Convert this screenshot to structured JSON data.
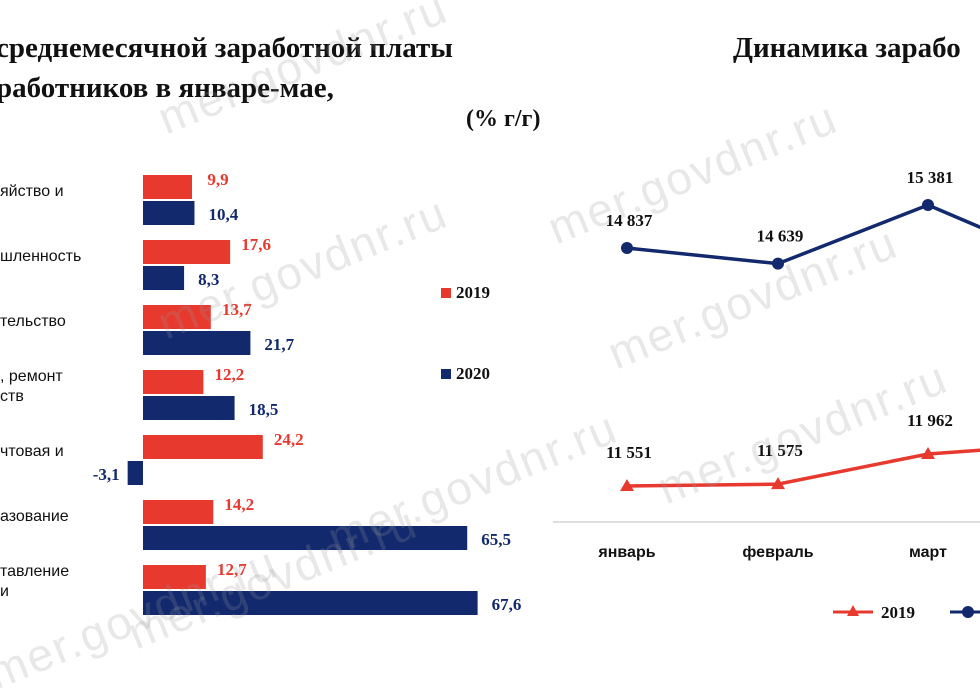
{
  "left_title": "среднемесячной заработной платы\nработников в январе-мае,",
  "unit_label": "(% г/г)",
  "right_title": "Динамика зарабо",
  "watermark": "mer.govdnr.ru",
  "colors": {
    "y2019": "#e8392f",
    "y2020": "#12296e",
    "gridline": "#bfbfbf"
  },
  "chart_data": [
    {
      "type": "bar",
      "orientation": "horizontal",
      "categories": [
        [
          "яйство и"
        ],
        [
          "шленность"
        ],
        [
          "тельство"
        ],
        [
          ", ремонт",
          "ств"
        ],
        [
          "чтовая и"
        ],
        [
          "азование"
        ],
        [
          "тавление",
          "и"
        ]
      ],
      "series": [
        {
          "name": "2019",
          "values": [
            9.9,
            17.6,
            13.7,
            12.2,
            24.2,
            14.2,
            12.7
          ],
          "labels": [
            "9,9",
            "17,6",
            "13,7",
            "12,2",
            "24,2",
            "14,2",
            "12,7"
          ]
        },
        {
          "name": "2020",
          "values": [
            10.4,
            8.3,
            21.7,
            18.5,
            -3.1,
            65.5,
            67.6
          ],
          "labels": [
            "10,4",
            "8,3",
            "21,7",
            "18,5",
            "-3,1",
            "65,5",
            "67,6"
          ]
        }
      ],
      "legend_position": "right"
    },
    {
      "type": "line",
      "categories": [
        "январь",
        "февраль",
        "март"
      ],
      "series": [
        {
          "name": "2020",
          "values": [
            14837,
            14639,
            15381
          ],
          "labels": [
            "14 837",
            "14 639",
            "15 381"
          ]
        },
        {
          "name": "2019",
          "values": [
            11551,
            11575,
            11962
          ],
          "labels": [
            "11 551",
            "11 575",
            "11 962"
          ]
        }
      ],
      "legend_position": "bottom"
    }
  ]
}
